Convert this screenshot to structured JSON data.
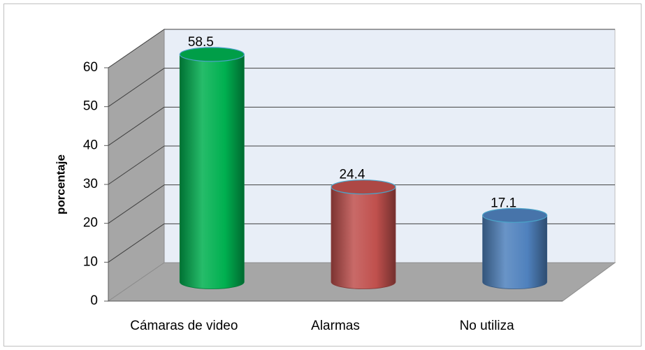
{
  "chart_data": {
    "type": "bar3d-cylinder",
    "y_label": "porcentaje",
    "categories": [
      "Cámaras de video",
      "Alarmas",
      "No utiliza"
    ],
    "values": [
      58.5,
      24.4,
      17.1
    ],
    "colors": [
      "#00b050",
      "#c0504d",
      "#4f81bd"
    ],
    "ylim": [
      0,
      60
    ],
    "yticks": [
      0,
      10,
      20,
      30,
      40,
      50,
      60
    ],
    "grid": true
  }
}
